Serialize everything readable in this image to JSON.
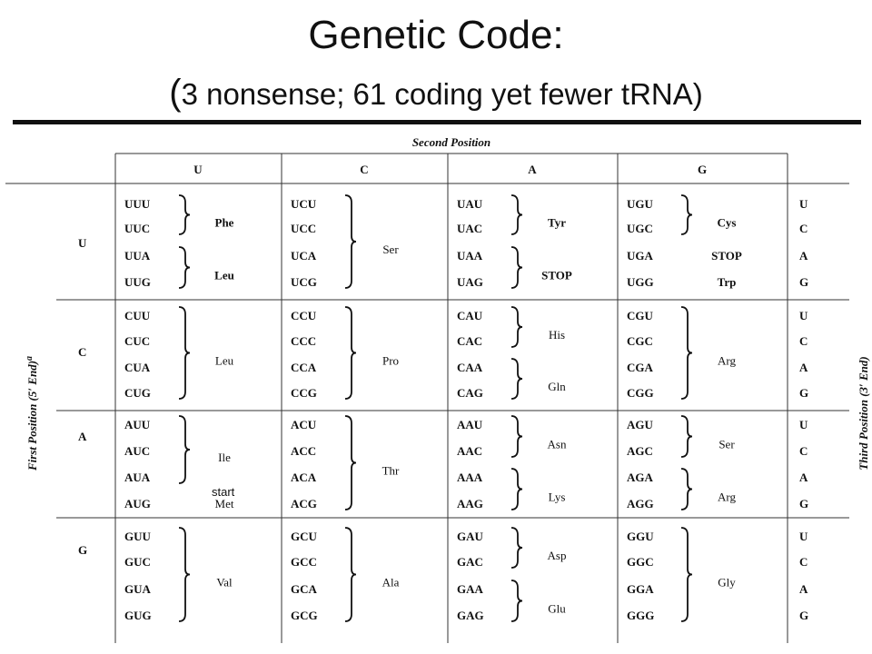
{
  "title": "Genetic Code:",
  "subtitle_open": "(",
  "subtitle": "3 nonsense; 61 coding yet fewer tRNA",
  "subtitle_close": ")",
  "table": {
    "second_position_label": "Second Position",
    "first_position_label": "First Position (5′ End)",
    "first_position_sup": "a",
    "third_position_label": "Third Position (3′ End)",
    "bases": [
      "U",
      "C",
      "A",
      "G"
    ],
    "third_bases": [
      "U",
      "C",
      "A",
      "G"
    ],
    "start_note": "start",
    "blocks": [
      [
        {
          "codons": [
            "UUU",
            "UUC",
            "UUA",
            "UUG"
          ],
          "aa": [
            {
              "text": "Phe",
              "rows": [
                0,
                1
              ]
            },
            {
              "text": "Leu",
              "rows": [
                2,
                3
              ]
            }
          ]
        },
        {
          "codons": [
            "UCU",
            "UCC",
            "UCA",
            "UCG"
          ],
          "aa": [
            {
              "text": "Ser",
              "rows": [
                0,
                3
              ]
            }
          ]
        },
        {
          "codons": [
            "UAU",
            "UAC",
            "UAA",
            "UAG"
          ],
          "aa": [
            {
              "text": "Tyr",
              "rows": [
                0,
                1
              ]
            },
            {
              "text": "STOP",
              "rows": [
                2,
                3
              ]
            }
          ]
        },
        {
          "codons": [
            "UGU",
            "UGC",
            "UGA",
            "UGG"
          ],
          "aa": [
            {
              "text": "Cys",
              "rows": [
                0,
                1
              ]
            },
            {
              "text": "STOP",
              "rows": [
                2,
                2
              ]
            },
            {
              "text": "Trp",
              "rows": [
                3,
                3
              ]
            }
          ]
        }
      ],
      [
        {
          "codons": [
            "CUU",
            "CUC",
            "CUA",
            "CUG"
          ],
          "aa": [
            {
              "text": "Leu",
              "rows": [
                0,
                3
              ]
            }
          ]
        },
        {
          "codons": [
            "CCU",
            "CCC",
            "CCA",
            "CCG"
          ],
          "aa": [
            {
              "text": "Pro",
              "rows": [
                0,
                3
              ]
            }
          ]
        },
        {
          "codons": [
            "CAU",
            "CAC",
            "CAA",
            "CAG"
          ],
          "aa": [
            {
              "text": "His",
              "rows": [
                0,
                1
              ]
            },
            {
              "text": "Gln",
              "rows": [
                2,
                3
              ]
            }
          ]
        },
        {
          "codons": [
            "CGU",
            "CGC",
            "CGA",
            "CGG"
          ],
          "aa": [
            {
              "text": "Arg",
              "rows": [
                0,
                3
              ]
            }
          ]
        }
      ],
      [
        {
          "codons": [
            "AUU",
            "AUC",
            "AUA",
            "AUG"
          ],
          "aa": [
            {
              "text": "Ile",
              "rows": [
                0,
                2
              ]
            },
            {
              "text": "Met",
              "rows": [
                3,
                3
              ]
            }
          ]
        },
        {
          "codons": [
            "ACU",
            "ACC",
            "ACA",
            "ACG"
          ],
          "aa": [
            {
              "text": "Thr",
              "rows": [
                0,
                3
              ]
            }
          ]
        },
        {
          "codons": [
            "AAU",
            "AAC",
            "AAA",
            "AAG"
          ],
          "aa": [
            {
              "text": "Asn",
              "rows": [
                0,
                1
              ]
            },
            {
              "text": "Lys",
              "rows": [
                2,
                3
              ]
            }
          ]
        },
        {
          "codons": [
            "AGU",
            "AGC",
            "AGA",
            "AGG"
          ],
          "aa": [
            {
              "text": "Ser",
              "rows": [
                0,
                1
              ]
            },
            {
              "text": "Arg",
              "rows": [
                2,
                3
              ]
            }
          ]
        }
      ],
      [
        {
          "codons": [
            "GUU",
            "GUC",
            "GUA",
            "GUG"
          ],
          "aa": [
            {
              "text": "Val",
              "rows": [
                0,
                3
              ]
            }
          ]
        },
        {
          "codons": [
            "GCU",
            "GCC",
            "GCA",
            "GCG"
          ],
          "aa": [
            {
              "text": "Ala",
              "rows": [
                0,
                3
              ]
            }
          ]
        },
        {
          "codons": [
            "GAU",
            "GAC",
            "GAA",
            "GAG"
          ],
          "aa": [
            {
              "text": "Asp",
              "rows": [
                0,
                1
              ]
            },
            {
              "text": "Glu",
              "rows": [
                2,
                3
              ]
            }
          ]
        },
        {
          "codons": [
            "GGU",
            "GGC",
            "GGA",
            "GGG"
          ],
          "aa": [
            {
              "text": "Gly",
              "rows": [
                0,
                3
              ]
            }
          ]
        }
      ]
    ]
  }
}
